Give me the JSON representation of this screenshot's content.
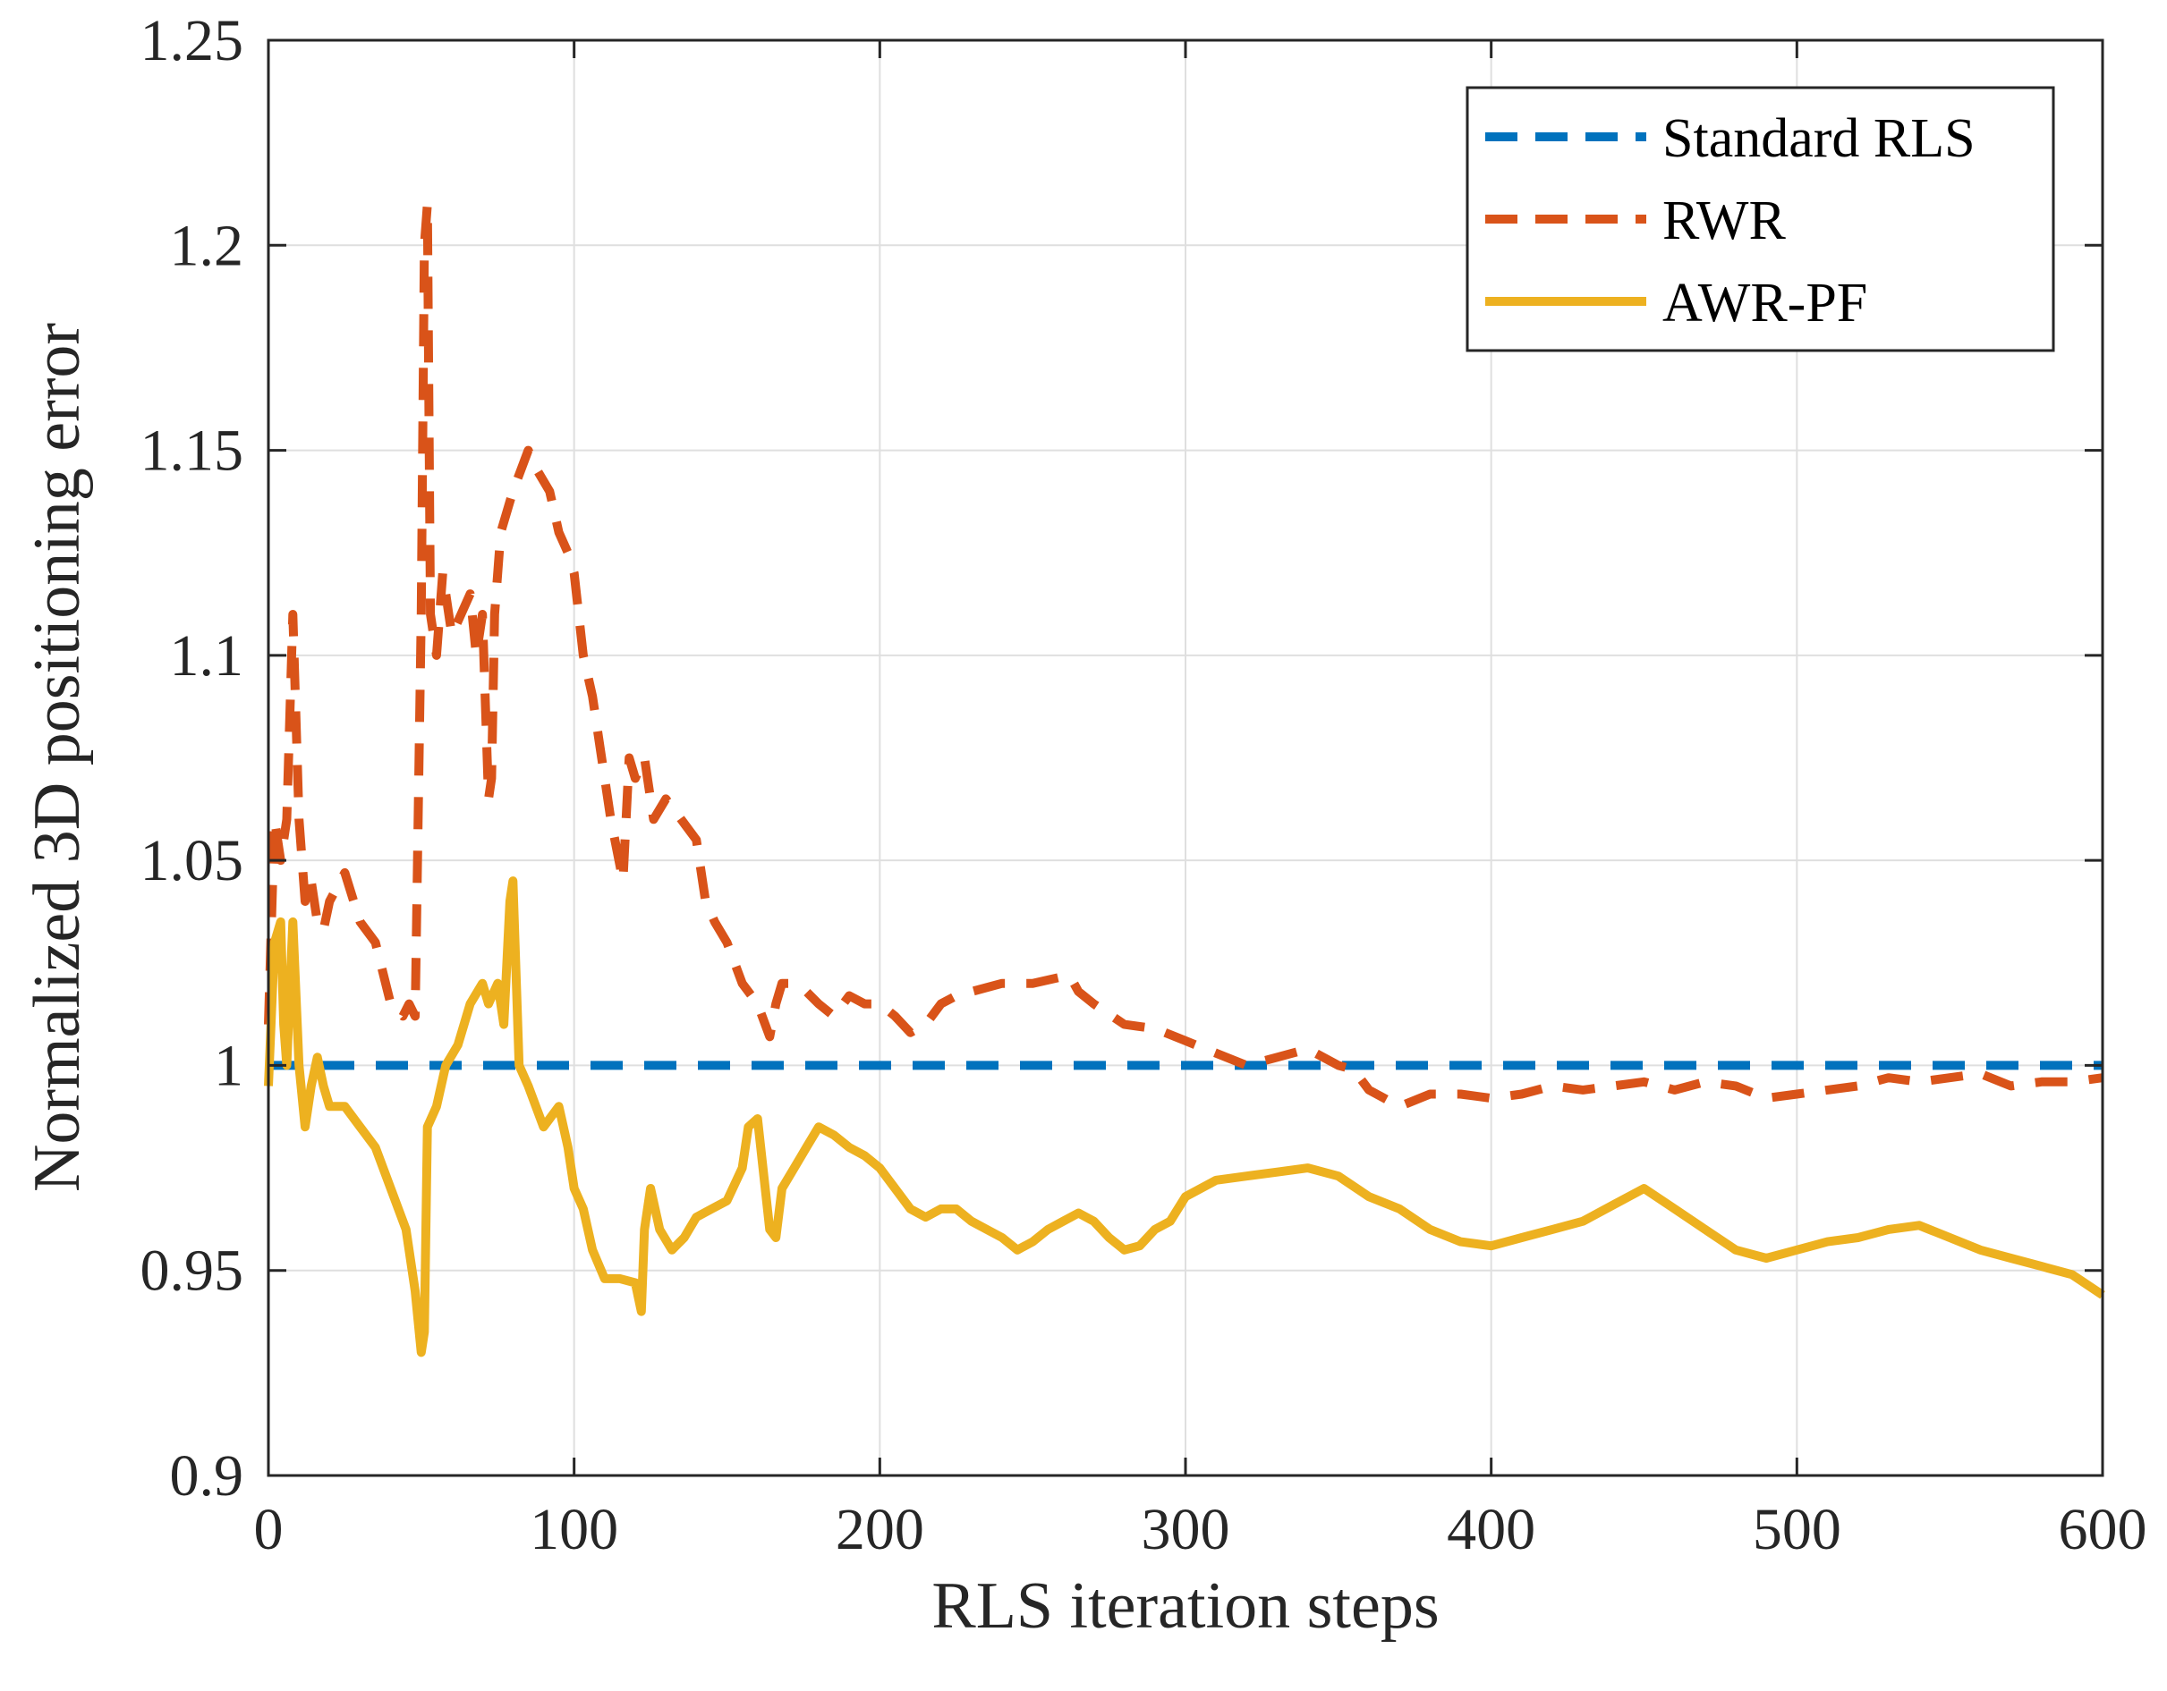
{
  "chart_data": {
    "type": "line",
    "title": "",
    "xlabel": "RLS iteration steps",
    "ylabel": "Normalized 3D positioning error",
    "xlim": [
      0,
      600
    ],
    "ylim": [
      0.9,
      1.25
    ],
    "xticks": [
      0,
      100,
      200,
      300,
      400,
      500,
      600
    ],
    "xtick_labels": [
      "0",
      "100",
      "200",
      "300",
      "400",
      "500",
      "600"
    ],
    "yticks": [
      0.9,
      0.95,
      1,
      1.05,
      1.1,
      1.15,
      1.2,
      1.25
    ],
    "ytick_labels": [
      "0.9",
      "0.95",
      "1",
      "1.05",
      "1.1",
      "1.15",
      "1.2",
      "1.25"
    ],
    "grid": true,
    "legend_position": "top-right",
    "series": [
      {
        "name": "Standard RLS",
        "color": "#0072BD",
        "style": "dashed",
        "x": [
          0,
          600
        ],
        "y": [
          1.0,
          1.0
        ]
      },
      {
        "name": "RWR",
        "color": "#D95319",
        "style": "dashed",
        "x": [
          0,
          2,
          4,
          6,
          8,
          10,
          12,
          14,
          16,
          18,
          20,
          25,
          30,
          35,
          40,
          44,
          46,
          48,
          50,
          51,
          52,
          53,
          55,
          57,
          60,
          63,
          66,
          68,
          70,
          72,
          73,
          74,
          76,
          80,
          85,
          88,
          92,
          95,
          98,
          100,
          103,
          106,
          108,
          112,
          116,
          118,
          120,
          123,
          126,
          130,
          135,
          140,
          143,
          146,
          150,
          155,
          160,
          164,
          166,
          168,
          172,
          176,
          180,
          185,
          190,
          195,
          200,
          205,
          210,
          215,
          220,
          225,
          230,
          240,
          250,
          262,
          265,
          270,
          280,
          290,
          300,
          310,
          320,
          330,
          340,
          350,
          355,
          360,
          370,
          380,
          390,
          400,
          410,
          420,
          430,
          440,
          450,
          460,
          470,
          480,
          490,
          500,
          510,
          520,
          530,
          540,
          550,
          560,
          570,
          580,
          590,
          600
        ],
        "y": [
          1.01,
          1.06,
          1.05,
          1.06,
          1.11,
          1.06,
          1.04,
          1.045,
          1.035,
          1.033,
          1.04,
          1.047,
          1.035,
          1.03,
          1.015,
          1.012,
          1.015,
          1.012,
          1.11,
          1.2,
          1.21,
          1.11,
          1.1,
          1.12,
          1.105,
          1.11,
          1.115,
          1.1,
          1.11,
          1.065,
          1.07,
          1.11,
          1.13,
          1.14,
          1.15,
          1.145,
          1.14,
          1.13,
          1.125,
          1.12,
          1.1,
          1.09,
          1.08,
          1.06,
          1.045,
          1.075,
          1.07,
          1.075,
          1.06,
          1.065,
          1.06,
          1.055,
          1.04,
          1.035,
          1.03,
          1.02,
          1.015,
          1.007,
          1.015,
          1.02,
          1.02,
          1.018,
          1.015,
          1.012,
          1.017,
          1.015,
          1.015,
          1.012,
          1.008,
          1.01,
          1.015,
          1.017,
          1.018,
          1.02,
          1.02,
          1.022,
          1.018,
          1.015,
          1.01,
          1.009,
          1.006,
          1.003,
          1.0,
          1.002,
          1.004,
          1.0,
          0.999,
          0.994,
          0.99,
          0.993,
          0.993,
          0.992,
          0.993,
          0.995,
          0.994,
          0.995,
          0.996,
          0.994,
          0.996,
          0.995,
          0.992,
          0.993,
          0.994,
          0.995,
          0.997,
          0.996,
          0.997,
          0.998,
          0.995,
          0.996,
          0.996,
          0.997
        ]
      },
      {
        "name": "AWR-PF",
        "color": "#EDB120",
        "style": "solid",
        "x": [
          0,
          2,
          4,
          5,
          6,
          8,
          10,
          12,
          14,
          16,
          18,
          20,
          25,
          30,
          35,
          40,
          45,
          48,
          50,
          51,
          52,
          55,
          58,
          62,
          66,
          70,
          72,
          75,
          77,
          79,
          80,
          82,
          85,
          90,
          95,
          98,
          100,
          103,
          106,
          110,
          115,
          120,
          122,
          123,
          125,
          128,
          132,
          136,
          140,
          145,
          150,
          155,
          157,
          160,
          164,
          166,
          168,
          172,
          176,
          180,
          185,
          190,
          195,
          200,
          205,
          210,
          215,
          220,
          225,
          230,
          235,
          240,
          245,
          250,
          255,
          260,
          265,
          270,
          275,
          280,
          285,
          290,
          295,
          300,
          310,
          320,
          330,
          340,
          350,
          360,
          370,
          380,
          390,
          400,
          410,
          420,
          430,
          440,
          450,
          460,
          470,
          480,
          490,
          500,
          510,
          520,
          530,
          540,
          550,
          560,
          570,
          580,
          590,
          600
        ],
        "y": [
          0.995,
          1.03,
          1.035,
          1.01,
          1.0,
          1.035,
          1.0,
          0.985,
          0.995,
          1.002,
          0.995,
          0.99,
          0.99,
          0.985,
          0.98,
          0.97,
          0.96,
          0.945,
          0.93,
          0.935,
          0.985,
          0.99,
          1.0,
          1.005,
          1.015,
          1.02,
          1.015,
          1.02,
          1.01,
          1.04,
          1.045,
          1.0,
          0.995,
          0.985,
          0.99,
          0.98,
          0.97,
          0.965,
          0.955,
          0.948,
          0.948,
          0.947,
          0.94,
          0.96,
          0.97,
          0.96,
          0.955,
          0.958,
          0.963,
          0.965,
          0.967,
          0.975,
          0.985,
          0.987,
          0.96,
          0.958,
          0.97,
          0.975,
          0.98,
          0.985,
          0.983,
          0.98,
          0.978,
          0.975,
          0.97,
          0.965,
          0.963,
          0.965,
          0.965,
          0.962,
          0.96,
          0.958,
          0.955,
          0.957,
          0.96,
          0.962,
          0.964,
          0.962,
          0.958,
          0.955,
          0.956,
          0.96,
          0.962,
          0.968,
          0.972,
          0.973,
          0.974,
          0.975,
          0.973,
          0.968,
          0.965,
          0.96,
          0.957,
          0.956,
          0.958,
          0.96,
          0.962,
          0.966,
          0.97,
          0.965,
          0.96,
          0.955,
          0.953,
          0.955,
          0.957,
          0.958,
          0.96,
          0.961,
          0.958,
          0.955,
          0.953,
          0.951,
          0.949,
          0.944
        ]
      }
    ]
  }
}
